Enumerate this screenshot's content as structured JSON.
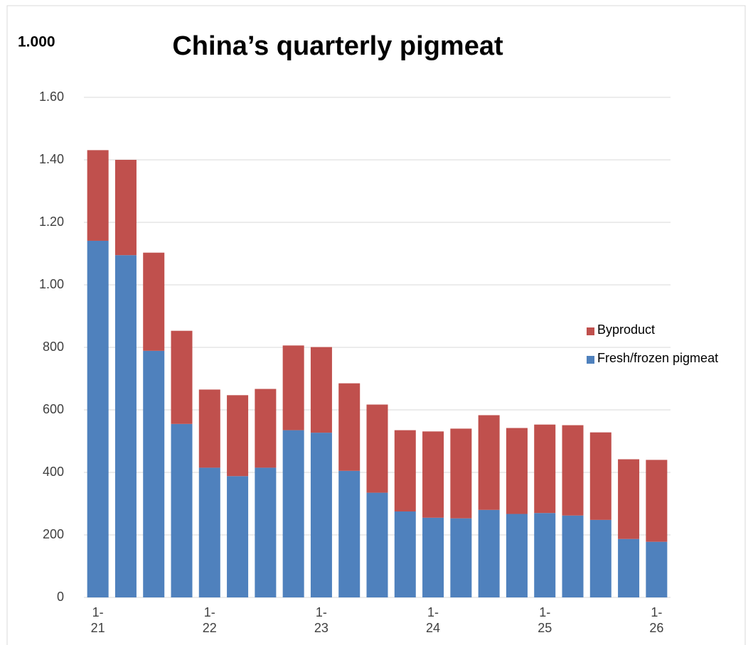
{
  "chart_data": {
    "type": "stacked_bar",
    "title": "China’s quarterly pigmeat",
    "annotation": "1.000",
    "categories": [
      "1-21",
      null,
      null,
      null,
      "1-22",
      null,
      null,
      null,
      "1-23",
      null,
      null,
      null,
      "1-24",
      null,
      null,
      null,
      "1-25",
      null,
      null,
      null,
      "1-26"
    ],
    "series": [
      {
        "name": "Fresh/frozen pigmeat",
        "color": "#4f81bd",
        "values": [
          1141,
          1095,
          789,
          555,
          415,
          388,
          415,
          535,
          527,
          405,
          335,
          275,
          255,
          253,
          280,
          267,
          270,
          262,
          248,
          187,
          178
        ]
      },
      {
        "name": "Byproduct",
        "color": "#c0504d",
        "values": [
          290,
          305,
          314,
          298,
          250,
          259,
          252,
          271,
          274,
          280,
          282,
          260,
          276,
          287,
          303,
          275,
          283,
          289,
          280,
          255,
          262
        ]
      }
    ],
    "ylim": [
      0,
      1600
    ],
    "yticks": [
      0,
      200,
      400,
      600,
      800,
      {
        "value": 1000,
        "label": "1.00"
      },
      {
        "value": 1200,
        "label": "1.20"
      },
      {
        "value": 1400,
        "label": "1.40"
      },
      {
        "value": 1600,
        "label": "1.60"
      }
    ],
    "grid": true,
    "legend": "right"
  }
}
